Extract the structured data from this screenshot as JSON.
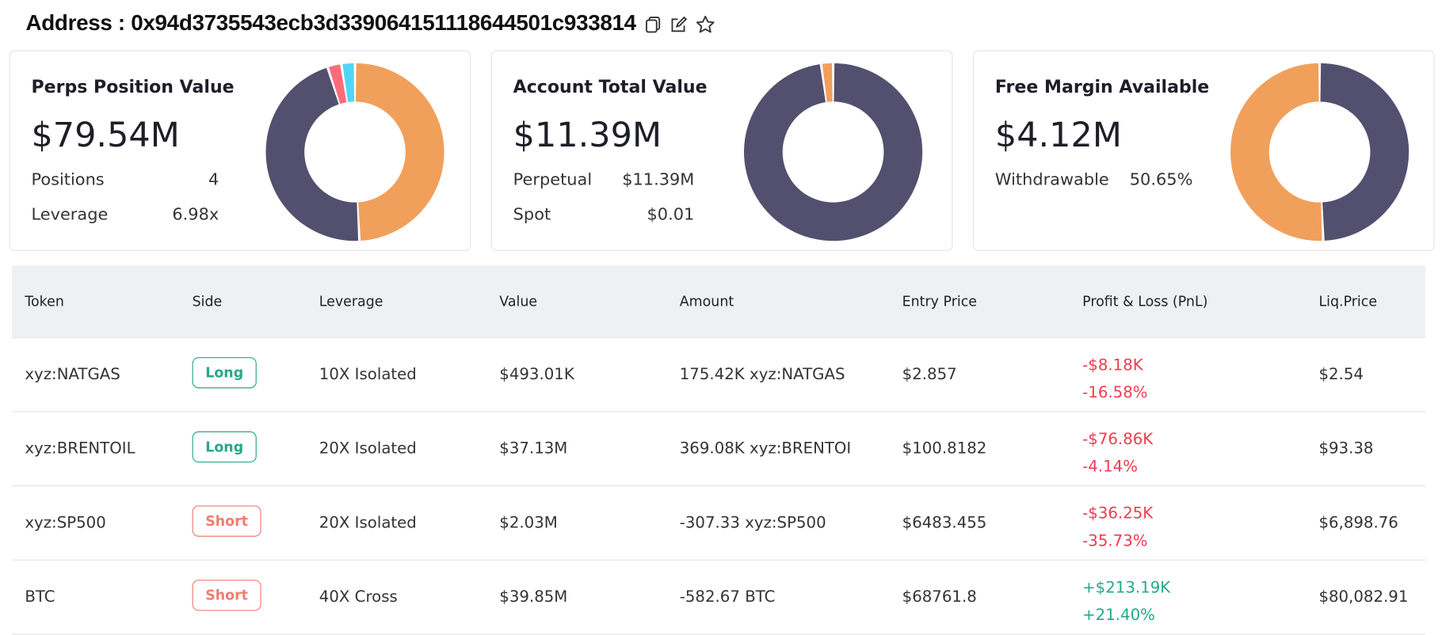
{
  "header": {
    "address_label": "Address : 0x94d3735543ecb3d339064151118644501c933814"
  },
  "colors": {
    "dark": "#52506e",
    "orange": "#f1a05b",
    "red": "#ff6b7a",
    "cyan": "#4fd6f6",
    "green": "#27a88a",
    "loss": "#ef3b4e"
  },
  "cards": [
    {
      "title": "Perps Position Value",
      "value": "$79.54M",
      "rows": [
        {
          "label": "Positions",
          "value": "4"
        },
        {
          "label": "Leverage",
          "value": "6.98x"
        }
      ],
      "donut": [
        {
          "name": "BTC",
          "value": 39.85,
          "color": "#f1a05b"
        },
        {
          "name": "xyz:BRENTOIL",
          "value": 37.13,
          "color": "#52506e"
        },
        {
          "name": "xyz:SP500",
          "value": 2.03,
          "color": "#ff6b7a"
        },
        {
          "name": "xyz:NATGAS",
          "value": 0.49,
          "color": "#4fd6f6"
        }
      ]
    },
    {
      "title": "Account Total Value",
      "value": "$11.39M",
      "rows": [
        {
          "label": "Perpetual",
          "value": "$11.39M"
        },
        {
          "label": "Spot",
          "value": "$0.01"
        }
      ],
      "donut": [
        {
          "name": "Perpetual",
          "value": 11.39,
          "color": "#52506e"
        },
        {
          "name": "Spot",
          "value": 0.01,
          "color": "#f1a05b"
        }
      ]
    },
    {
      "title": "Free Margin Available",
      "value": "$4.12M",
      "rows": [
        {
          "label": "Withdrawable",
          "value": "50.65%"
        }
      ],
      "donut": [
        {
          "name": "Used",
          "value": 49.35,
          "color": "#52506e"
        },
        {
          "name": "Withdrawable",
          "value": 50.65,
          "color": "#f1a05b"
        }
      ]
    }
  ],
  "table": {
    "columns": [
      "Token",
      "Side",
      "Leverage",
      "Value",
      "Amount",
      "Entry Price",
      "Profit & Loss (PnL)",
      "Liq.Price"
    ],
    "rows": [
      {
        "token": "xyz:NATGAS",
        "side": "Long",
        "leverage": "10X Isolated",
        "value": "$493.01K",
        "amount": "175.42K xyz:NATGAS",
        "entry": "$2.857",
        "pnl": "-$8.18K",
        "pnl_pct": "-16.58%",
        "liq": "$2.54"
      },
      {
        "token": "xyz:BRENTOIL",
        "side": "Long",
        "leverage": "20X Isolated",
        "value": "$37.13M",
        "amount": "369.08K xyz:BRENTOI",
        "entry": "$100.8182",
        "pnl": "-$76.86K",
        "pnl_pct": "-4.14%",
        "liq": "$93.38"
      },
      {
        "token": "xyz:SP500",
        "side": "Short",
        "leverage": "20X Isolated",
        "value": "$2.03M",
        "amount": "-307.33 xyz:SP500",
        "entry": "$6483.455",
        "pnl": "-$36.25K",
        "pnl_pct": "-35.73%",
        "liq": "$6,898.76"
      },
      {
        "token": "BTC",
        "side": "Short",
        "leverage": "40X Cross",
        "value": "$39.85M",
        "amount": "-582.67 BTC",
        "entry": "$68761.8",
        "pnl": "+$213.19K",
        "pnl_pct": "+21.40%",
        "liq": "$80,082.91"
      }
    ]
  }
}
